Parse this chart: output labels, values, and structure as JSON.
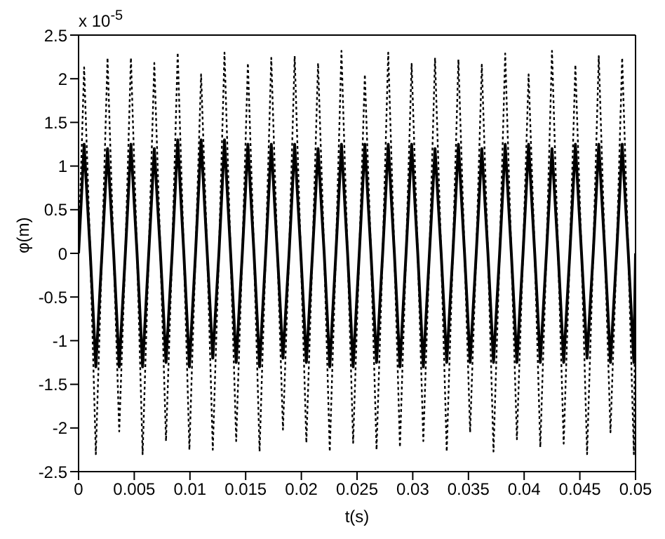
{
  "chart_data": {
    "type": "line",
    "xlabel": "t(s)",
    "ylabel": "φ(m)",
    "annotations": [
      "x 10$^{-5}$"
    ],
    "x": [
      0,
      0.0005,
      0.00105,
      0.00155,
      0.0021,
      0.0026,
      0.00315,
      0.00365,
      0.0042,
      0.0047,
      0.00525,
      0.00575,
      0.0063,
      0.0068,
      0.00735,
      0.00785,
      0.0084,
      0.0089,
      0.00945,
      0.00995,
      0.0105,
      0.011,
      0.01155,
      0.01205,
      0.0126,
      0.0131,
      0.01365,
      0.01415,
      0.0147,
      0.0152,
      0.01575,
      0.01625,
      0.0168,
      0.0173,
      0.01785,
      0.01835,
      0.0189,
      0.0194,
      0.01995,
      0.02045,
      0.021,
      0.0215,
      0.02205,
      0.02255,
      0.0231,
      0.0236,
      0.02415,
      0.02465,
      0.0252,
      0.0257,
      0.02625,
      0.02675,
      0.0273,
      0.0278,
      0.02835,
      0.02885,
      0.0294,
      0.0299,
      0.03045,
      0.03095,
      0.0315,
      0.032,
      0.03255,
      0.03305,
      0.0336,
      0.0341,
      0.03465,
      0.03515,
      0.0357,
      0.0362,
      0.03675,
      0.03725,
      0.0378,
      0.0383,
      0.03885,
      0.03935,
      0.0399,
      0.0404,
      0.04095,
      0.04145,
      0.042,
      0.0425,
      0.04305,
      0.04355,
      0.0441,
      0.0446,
      0.04515,
      0.04565,
      0.0462,
      0.0467,
      0.04725,
      0.04775,
      0.0483,
      0.0488,
      0.04935,
      0.04985,
      0.05
    ],
    "series": [
      {
        "color": "#000000",
        "line_style": "dotted",
        "values": [
          0,
          2.13,
          0,
          -2.3,
          0,
          2.24,
          0,
          -2.04,
          0,
          2.24,
          0,
          -2.3,
          0,
          2.18,
          0,
          -2.15,
          0,
          2.3,
          0,
          -2.25,
          0,
          2.05,
          0,
          -2.25,
          0,
          2.3,
          0,
          -2.15,
          0,
          2.18,
          0,
          -2.27,
          0,
          2.24,
          0,
          -2.02,
          0,
          2.26,
          0,
          -2.17,
          0,
          2.18,
          0,
          -2.27,
          0,
          2.32,
          0,
          -2.17,
          0,
          2.05,
          0,
          -2.25,
          0,
          2.3,
          0,
          -2.22,
          0,
          2.17,
          0,
          -2.15,
          0,
          2.24,
          0,
          -2.27,
          0,
          2.22,
          0,
          -2.05,
          0,
          2.16,
          0,
          -2.27,
          0,
          2.29,
          0,
          -2.13,
          0,
          2.05,
          0,
          -2.22,
          0,
          2.32,
          0,
          -2.18,
          0,
          2.16,
          0,
          -2.3,
          0,
          2.26,
          0,
          -2.05,
          0,
          2.24,
          0,
          -2.3,
          0
        ]
      },
      {
        "color": "#000000",
        "line_style": "solid",
        "values": [
          0,
          1.25,
          0,
          -1.3,
          0,
          1.2,
          0,
          -1.3,
          0,
          1.25,
          0,
          -1.3,
          0,
          1.2,
          0,
          -1.25,
          0,
          1.3,
          0,
          -1.3,
          0,
          1.3,
          0,
          -1.2,
          0,
          1.3,
          0,
          -1.25,
          0,
          1.25,
          0,
          -1.3,
          0,
          1.25,
          0,
          -1.2,
          0,
          1.25,
          0,
          -1.25,
          0,
          1.2,
          0,
          -1.3,
          0,
          1.25,
          0,
          -1.3,
          0,
          1.25,
          0,
          -1.25,
          0,
          1.25,
          0,
          -1.3,
          0,
          1.25,
          0,
          -1.3,
          0,
          1.2,
          0,
          -1.25,
          0,
          1.25,
          0,
          -1.25,
          0,
          1.2,
          0,
          -1.25,
          0,
          1.25,
          0,
          -1.25,
          0,
          1.25,
          0,
          -1.25,
          0,
          1.2,
          0,
          -1.25,
          0,
          1.25,
          0,
          -1.2,
          0,
          1.25,
          0,
          -1.25,
          0,
          1.25,
          0,
          -1.25,
          0
        ]
      }
    ],
    "xlim": [
      0,
      0.05
    ],
    "xticks": [
      0,
      0.005,
      0.01,
      0.015,
      0.02,
      0.025,
      0.03,
      0.035,
      0.04,
      0.045,
      0.05
    ],
    "ylim": [
      -2.5,
      2.5
    ],
    "yticks": [
      -2.5,
      -2,
      -1.5,
      -1,
      -0.5,
      0,
      0.5,
      1,
      1.5,
      2,
      2.5
    ],
    "grid": false,
    "legend": false,
    "marker": "none"
  }
}
